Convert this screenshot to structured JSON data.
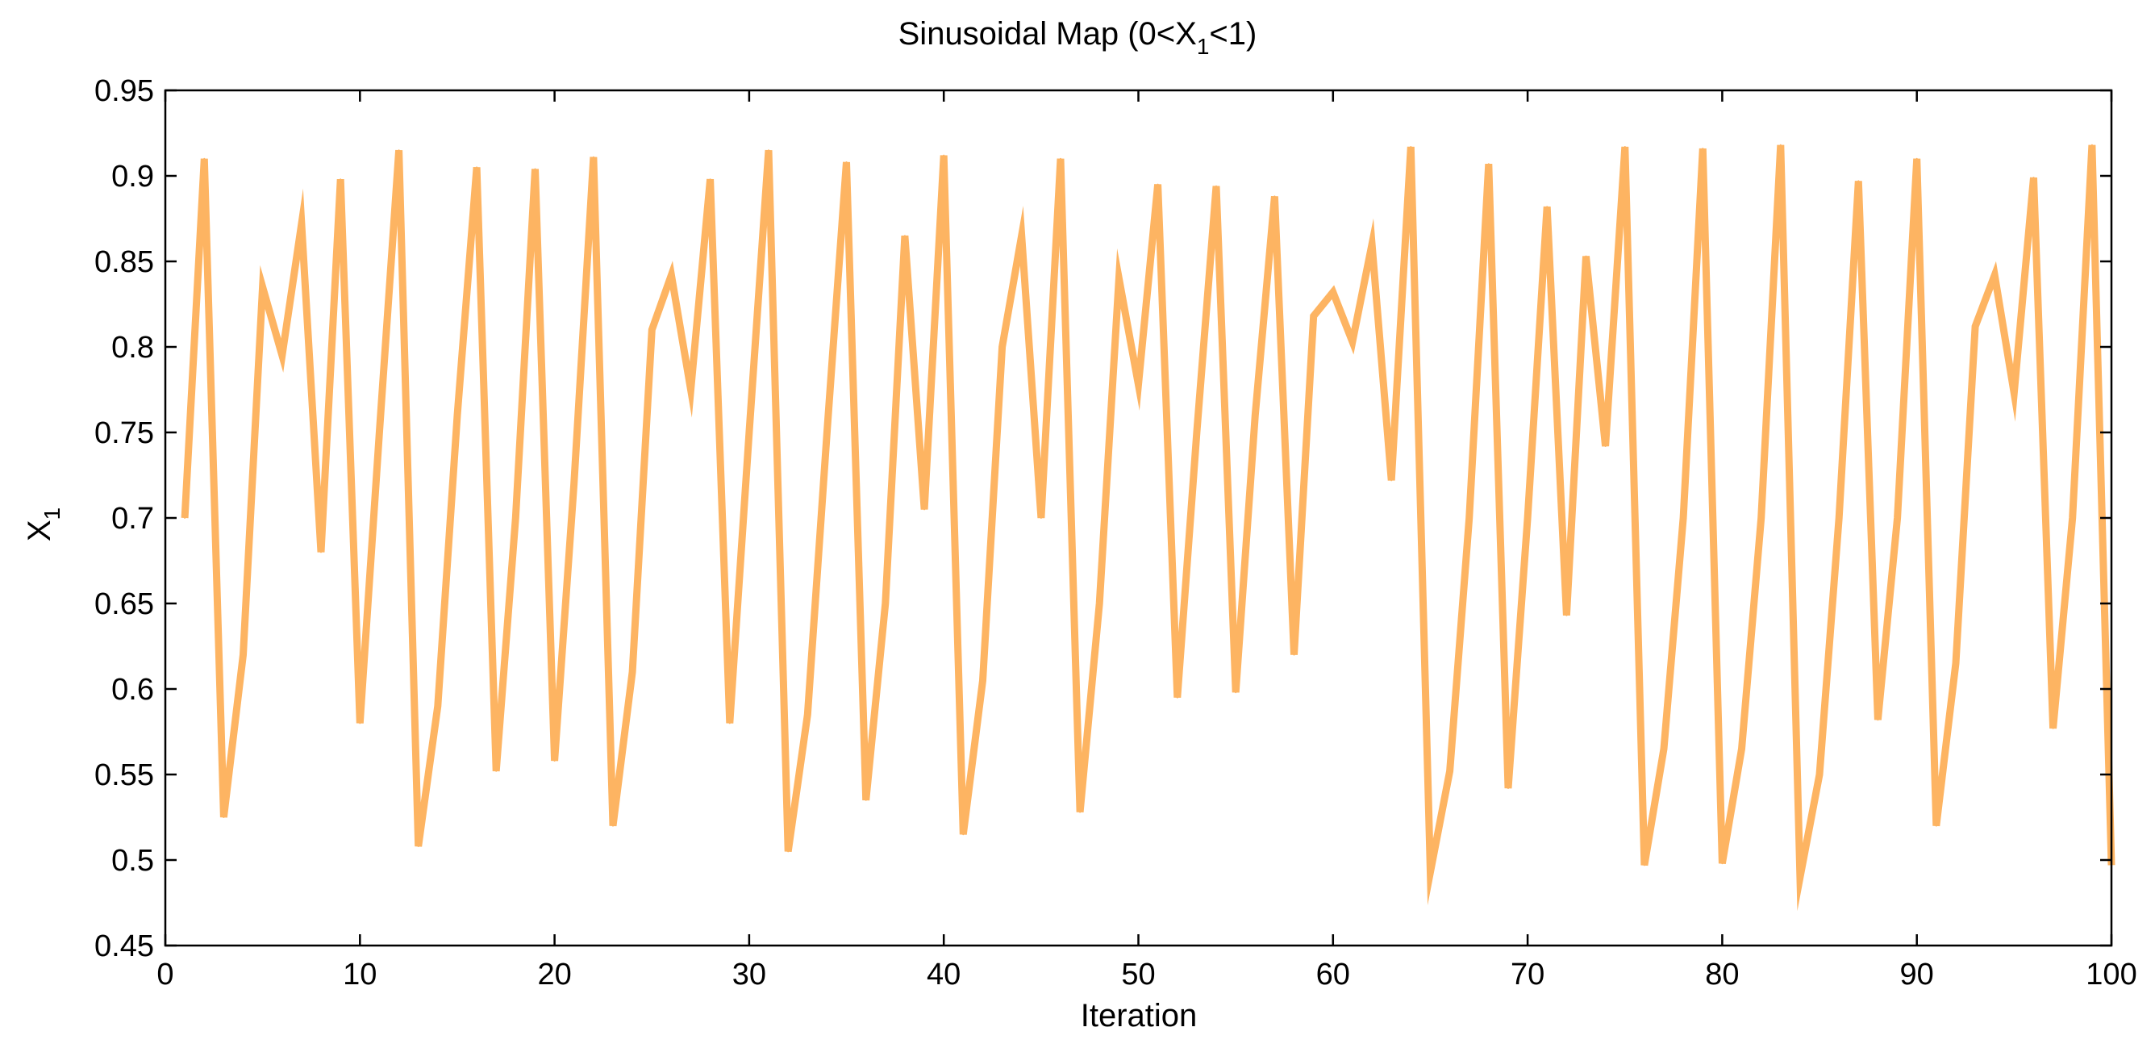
{
  "chart_data": {
    "type": "line",
    "title": {
      "pre": "Sinusoidal Map (0<X",
      "sub": "1",
      "post": "<1)"
    },
    "xlabel": "Iteration",
    "ylabel": {
      "main": "X",
      "sub": "1"
    },
    "xlim": [
      0,
      100
    ],
    "ylim": [
      0.45,
      0.95
    ],
    "xticks": [
      0,
      10,
      20,
      30,
      40,
      50,
      60,
      70,
      80,
      90,
      100
    ],
    "xtick_labels": [
      "0",
      "10",
      "20",
      "30",
      "40",
      "50",
      "60",
      "70",
      "80",
      "90",
      "100"
    ],
    "yticks": [
      0.45,
      0.5,
      0.55,
      0.6,
      0.65,
      0.7,
      0.75,
      0.8,
      0.85,
      0.9,
      0.95
    ],
    "ytick_labels": [
      "0.45",
      "0.5",
      "0.55",
      "0.6",
      "0.65",
      "0.7",
      "0.75",
      "0.8",
      "0.85",
      "0.9",
      "0.95"
    ],
    "grid": false,
    "line_color": "#FDB462",
    "series": [
      {
        "name": "X1",
        "x": [
          1,
          2,
          3,
          4,
          5,
          6,
          7,
          8,
          9,
          10,
          11,
          12,
          13,
          14,
          15,
          16,
          17,
          18,
          19,
          20,
          21,
          22,
          23,
          24,
          25,
          26,
          27,
          28,
          29,
          30,
          31,
          32,
          33,
          34,
          35,
          36,
          37,
          38,
          39,
          40,
          41,
          42,
          43,
          44,
          45,
          46,
          47,
          48,
          49,
          50,
          51,
          52,
          53,
          54,
          55,
          56,
          57,
          58,
          59,
          60,
          61,
          62,
          63,
          64,
          65,
          66,
          67,
          68,
          69,
          70,
          71,
          72,
          73,
          74,
          75,
          76,
          77,
          78,
          79,
          80,
          81,
          82,
          83,
          84,
          85,
          86,
          87,
          88,
          89,
          90,
          91,
          92,
          93,
          94,
          95,
          96,
          97,
          98,
          99,
          100
        ],
        "values": [
          0.7,
          0.91,
          0.525,
          0.62,
          0.835,
          0.795,
          0.872,
          0.68,
          0.898,
          0.58,
          0.75,
          0.915,
          0.508,
          0.59,
          0.76,
          0.905,
          0.552,
          0.7,
          0.904,
          0.558,
          0.72,
          0.911,
          0.52,
          0.61,
          0.81,
          0.842,
          0.775,
          0.898,
          0.58,
          0.75,
          0.915,
          0.505,
          0.585,
          0.75,
          0.908,
          0.535,
          0.65,
          0.865,
          0.705,
          0.912,
          0.515,
          0.605,
          0.8,
          0.865,
          0.7,
          0.91,
          0.528,
          0.65,
          0.84,
          0.778,
          0.895,
          0.595,
          0.75,
          0.894,
          0.598,
          0.76,
          0.888,
          0.62,
          0.818,
          0.832,
          0.803,
          0.86,
          0.722,
          0.917,
          0.493,
          0.552,
          0.7,
          0.907,
          0.542,
          0.7,
          0.882,
          0.643,
          0.853,
          0.742,
          0.917,
          0.497,
          0.565,
          0.7,
          0.916,
          0.498,
          0.565,
          0.7,
          0.918,
          0.49,
          0.55,
          0.7,
          0.897,
          0.582,
          0.7,
          0.91,
          0.52,
          0.615,
          0.812,
          0.842,
          0.773,
          0.899,
          0.577,
          0.7,
          0.918,
          0.497
        ]
      }
    ]
  }
}
